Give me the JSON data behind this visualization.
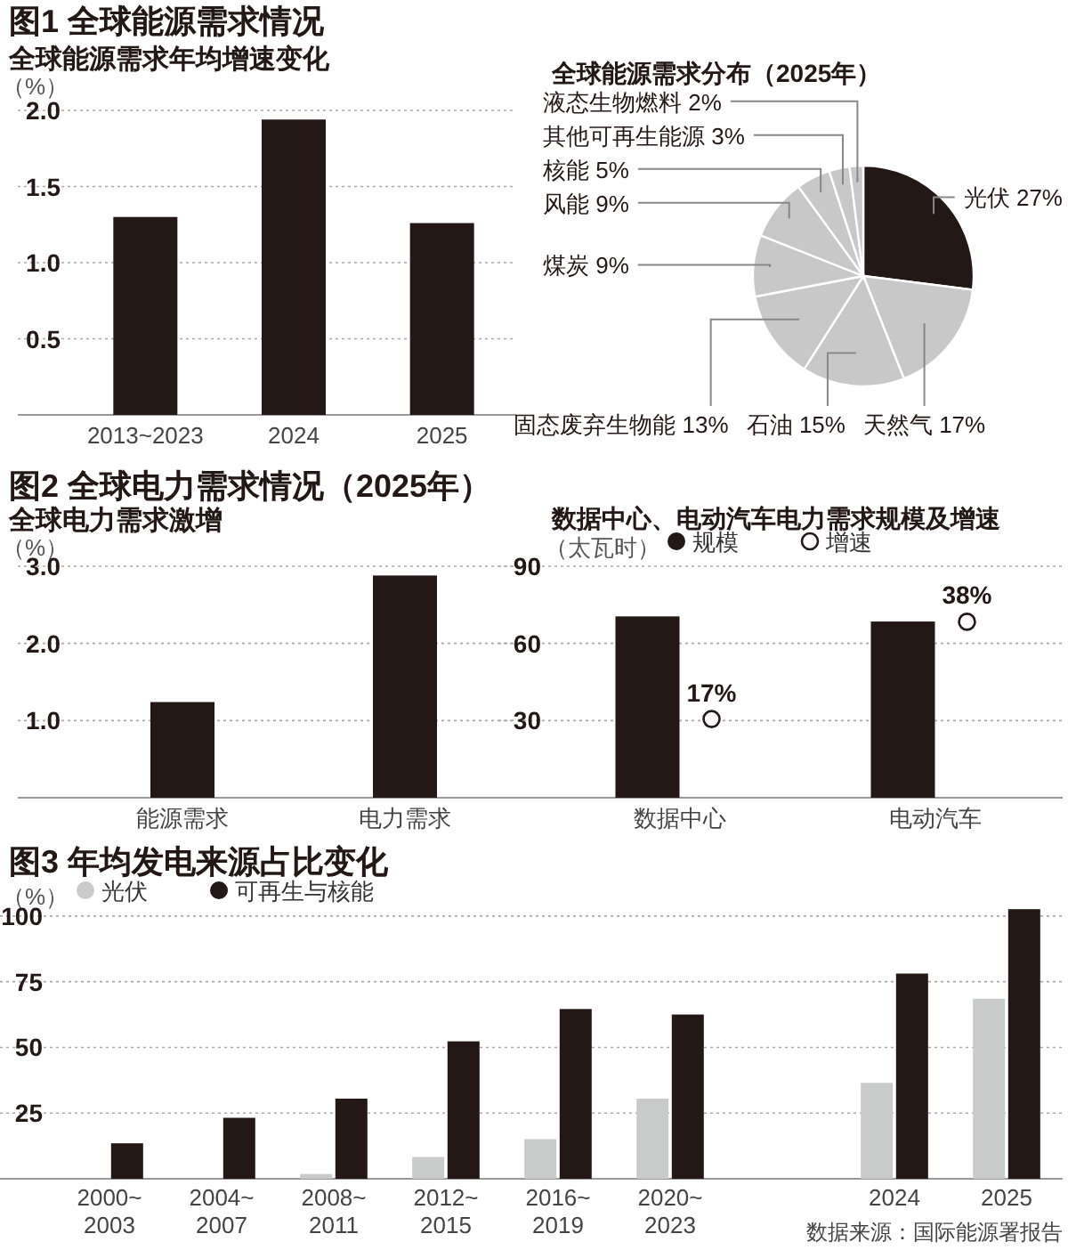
{
  "chart_data": [
    {
      "type": "bar",
      "title": "图1 全球能源需求情况",
      "subtitle": "全球能源需求年均增速变化",
      "ylabel": "（%）",
      "categories": [
        "2013~2023",
        "2024",
        "2025"
      ],
      "values": [
        1.3,
        1.94,
        1.26
      ],
      "color": "#231815",
      "ylim": [
        0,
        2
      ],
      "yticks": [
        0.5,
        {
          "value": 1,
          "label": "1.0"
        },
        1.5,
        {
          "value": 2,
          "label": "2.0"
        }
      ],
      "grid": "y"
    },
    {
      "type": "pie",
      "title": "全球能源需求分布（2025年）",
      "categories": [
        "光伏",
        "天然气",
        "石油",
        "固态废弃生物能",
        "煤炭",
        "风能",
        "核能",
        "其他可再生能源",
        "液态生物燃料"
      ],
      "values": [
        27,
        17,
        15,
        13,
        9,
        9,
        5,
        3,
        2
      ],
      "value_labels": [
        "27%",
        "17%",
        "15%",
        "13%",
        "9%",
        "9%",
        "5%",
        "3%",
        "2%"
      ],
      "colors": [
        "#231815",
        "#c8c8c8",
        "#c8c8c8",
        "#c8c8c8",
        "#c8c8c8",
        "#c8c8c8",
        "#c8c8c8",
        "#c8c8c8",
        "#c8c8c8"
      ]
    },
    {
      "type": "bar",
      "title": "图2 全球电力需求情况（2025年）",
      "subtitle": "全球电力需求激增",
      "ylabel": "（%）",
      "categories": [
        "能源需求",
        "电力需求"
      ],
      "values": [
        1.24,
        2.88
      ],
      "color": "#231815",
      "ylim": [
        0,
        3
      ],
      "yticks": [
        {
          "value": 1,
          "label": "1.0"
        },
        {
          "value": 2,
          "label": "2.0"
        },
        {
          "value": 3,
          "label": "3.0"
        }
      ],
      "grid": "y"
    },
    {
      "type": "bar",
      "title": "数据中心、电动汽车电力需求规模及增速",
      "ylabel": "（太瓦时）",
      "categories": [
        "数据中心",
        "电动汽车"
      ],
      "series": [
        {
          "name": "规模",
          "color": "#231815",
          "values": [
            70.5,
            68.5
          ]
        },
        {
          "name": "增速",
          "type": "scatter",
          "axis": "y2",
          "color": "#231815",
          "x": [
            "数据中心",
            "电动汽车"
          ],
          "values": [
            17,
            38
          ],
          "value_labels": [
            "17%",
            "38%"
          ]
        }
      ],
      "ylim": [
        0,
        90
      ],
      "yticks": [
        30,
        60,
        90
      ],
      "y2lim": [
        0,
        50
      ],
      "marker": "circle",
      "grid": "y",
      "legend": "top"
    },
    {
      "type": "bar",
      "title": "图3 年均发电来源占比变化",
      "ylabel": "（%）",
      "categories": [
        "2000~\n2003",
        "2004~\n2007",
        "2008~\n2011",
        "2012~\n2015",
        "2016~\n2019",
        "2020~\n2023",
        null,
        "2024",
        "2025"
      ],
      "series": [
        {
          "name": "光伏",
          "color": "#c9caca",
          "values": [
            null,
            null,
            1.8,
            8.3,
            15.1,
            30.5,
            null,
            36.5,
            68.5
          ]
        },
        {
          "name": "可再生与核能",
          "color": "#231815",
          "values": [
            13.5,
            23.2,
            30.5,
            52.3,
            64.6,
            62.5,
            null,
            78.1,
            102.6
          ]
        }
      ],
      "ylim": [
        0,
        103
      ],
      "yticks": [
        25,
        50,
        75,
        100
      ],
      "grid": "y",
      "legend": "top left",
      "annotations": [
        "数据来源：国际能源署报告"
      ]
    }
  ]
}
